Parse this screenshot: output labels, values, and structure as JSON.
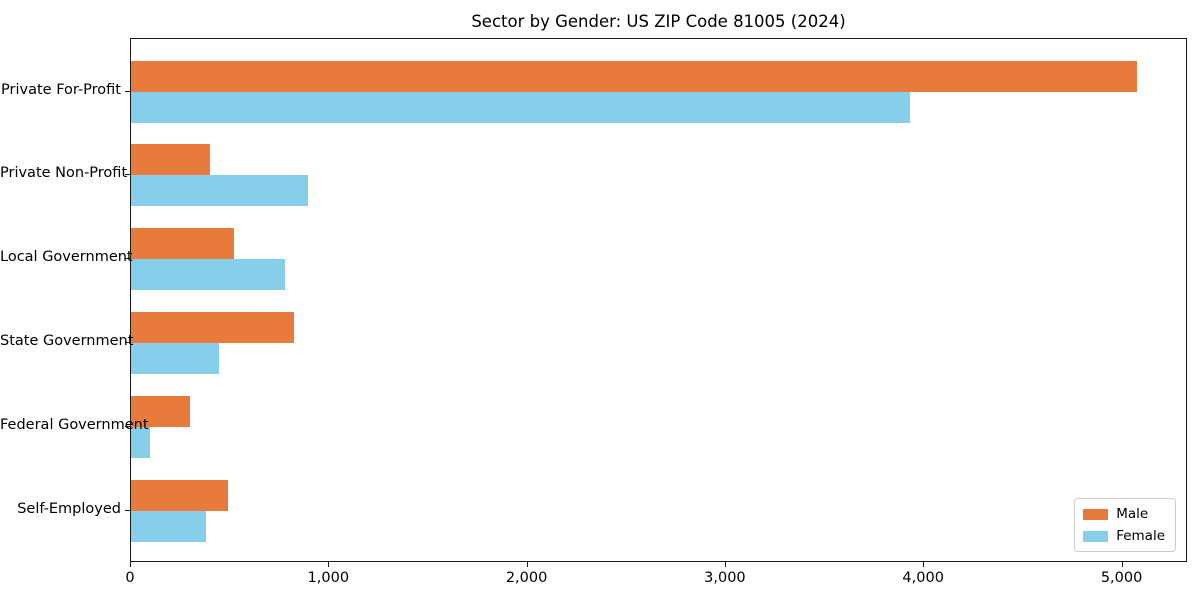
{
  "chart_data": {
    "type": "bar",
    "orientation": "horizontal",
    "title": "Sector by Gender: US ZIP Code 81005 (2024)",
    "categories": [
      "Private For-Profit",
      "Private Non-Profit",
      "Local Government",
      "State Government",
      "Federal Government",
      "Self-Employed"
    ],
    "series": [
      {
        "name": "Male",
        "color": "#e87a3c",
        "values": [
          5075,
          400,
          520,
          820,
          295,
          490
        ]
      },
      {
        "name": "Female",
        "color": "#87ceeb",
        "values": [
          3930,
          890,
          775,
          445,
          95,
          380
        ]
      }
    ],
    "xlabel": "",
    "ylabel": "",
    "xlim": [
      0,
      5330
    ],
    "xticks": [
      0,
      1000,
      2000,
      3000,
      4000,
      5000
    ],
    "xtick_labels": [
      "0",
      "1,000",
      "2,000",
      "3,000",
      "4,000",
      "5,000"
    ],
    "grid": false,
    "legend": {
      "position": "lower right"
    },
    "colors": {
      "axis": "#1a1a1a",
      "background": "#ffffff",
      "text": "#000000"
    }
  }
}
